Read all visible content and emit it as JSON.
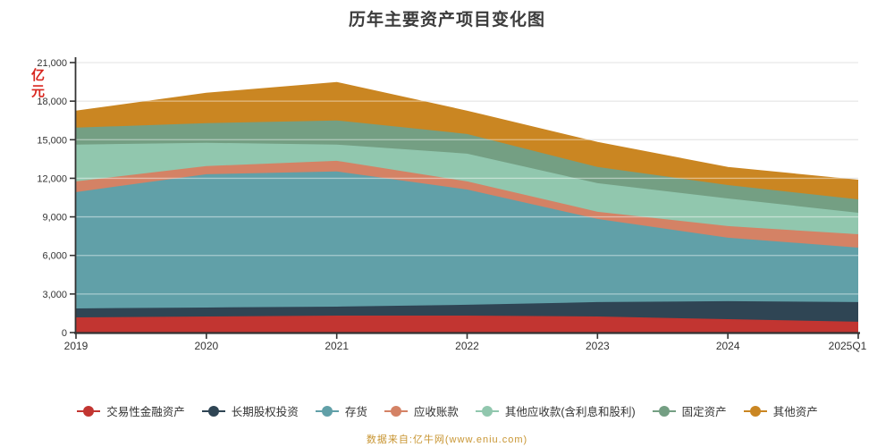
{
  "title": "历年主要资产项目变化图",
  "y_axis_unit": "亿元",
  "source_note": "数据来自:亿牛网(www.eniu.com)",
  "colors": {
    "axis": "#333333",
    "grid": "#cccccc",
    "grid_overlay": "rgba(255,255,255,0.45)",
    "title": "#3c3c3c",
    "unit_label": "#d8261f",
    "source_note": "#c89532",
    "legend_text": "#333333",
    "tick_label": "#333333"
  },
  "chart_data": {
    "type": "area",
    "stacked": true,
    "title": "历年主要资产项目变化图",
    "xlabel": "",
    "ylabel": "亿元",
    "ylim": [
      0,
      21000
    ],
    "y_ticks": [
      0,
      3000,
      6000,
      9000,
      12000,
      15000,
      18000,
      21000
    ],
    "y_tick_labels": [
      "0",
      "3,000",
      "6,000",
      "9,000",
      "12,000",
      "15,000",
      "18,000",
      "21,000"
    ],
    "grid": true,
    "legend_position": "bottom",
    "categories": [
      "2019",
      "2020",
      "2021",
      "2022",
      "2023",
      "2024",
      "2025Q1"
    ],
    "series": [
      {
        "name": "交易性金融资产",
        "color": "#c23531",
        "values": [
          1180,
          1250,
          1320,
          1320,
          1250,
          1040,
          840
        ]
      },
      {
        "name": "长期股权投资",
        "color": "#2f4554",
        "values": [
          700,
          700,
          700,
          840,
          1120,
          1400,
          1530
        ]
      },
      {
        "name": "存货",
        "color": "#61a0a8",
        "values": [
          9050,
          10370,
          10510,
          8970,
          6470,
          4940,
          4240
        ]
      },
      {
        "name": "应收账款",
        "color": "#d48265",
        "values": [
          830,
          630,
          830,
          630,
          560,
          900,
          1040
        ]
      },
      {
        "name": "其他应收款(含利息和股利)",
        "color": "#91c7ae",
        "values": [
          2860,
          1810,
          1260,
          2160,
          2220,
          2150,
          1670
        ]
      },
      {
        "name": "固定资产",
        "color": "#749f83",
        "values": [
          1320,
          1530,
          1880,
          1530,
          1260,
          1040,
          1040
        ]
      },
      {
        "name": "其他资产",
        "color": "#ca8622",
        "values": [
          1250,
          2290,
          2920,
          1740,
          1880,
          1340,
          1460
        ]
      }
    ],
    "totals": [
      17190,
      18580,
      19420,
      17190,
      14760,
      12810,
      11820
    ]
  }
}
